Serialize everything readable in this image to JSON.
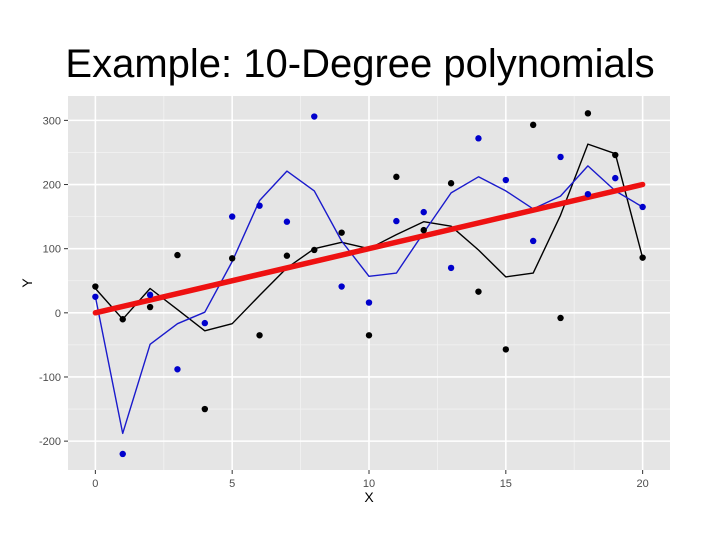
{
  "slide": {
    "title": "Example: 10-Degree polynomials"
  },
  "colors": {
    "panel_bg": "#e5e5e5",
    "grid_major": "#ffffff",
    "grid_minor": "#f2f2f2",
    "points_black": "#000000",
    "points_blue": "#0000cc",
    "fit_black": "#000000",
    "fit_blue": "#1a1acc",
    "linear_fit": "#ee1111"
  },
  "chart_data": {
    "type": "scatter",
    "title": "",
    "xlabel": "X",
    "ylabel": "Y",
    "xlim": [
      -1,
      21
    ],
    "ylim": [
      -245,
      338
    ],
    "xticks": [
      0,
      5,
      10,
      15,
      20
    ],
    "yticks": [
      -200,
      -100,
      0,
      100,
      200,
      300
    ],
    "grid": true,
    "legend": "none",
    "series": [
      {
        "kind": "points",
        "color": "points_black",
        "x": [
          0,
          1,
          2,
          3,
          4,
          5,
          6,
          7,
          8,
          9,
          10,
          11,
          12,
          13,
          14,
          15,
          16,
          17,
          18,
          19,
          20
        ],
        "y": [
          41,
          -10,
          9,
          90,
          -150,
          85,
          -35,
          89,
          98,
          125,
          -35,
          212,
          129,
          202,
          33,
          -57,
          293,
          -8,
          311,
          246,
          86
        ]
      },
      {
        "kind": "points",
        "color": "points_blue",
        "x": [
          0,
          1,
          2,
          3,
          4,
          5,
          6,
          7,
          8,
          9,
          10,
          11,
          12,
          13,
          14,
          15,
          16,
          17,
          18,
          19,
          20
        ],
        "y": [
          25,
          -220,
          28,
          -88,
          -16,
          150,
          167,
          142,
          306,
          41,
          16,
          143,
          157,
          70,
          272,
          207,
          112,
          243,
          185,
          210,
          165
        ]
      },
      {
        "kind": "curve",
        "color": "fit_black",
        "x": [
          0,
          1,
          2,
          3,
          4,
          5,
          6,
          7,
          8,
          9,
          10,
          11,
          12,
          13,
          14,
          15,
          16,
          17,
          18,
          19,
          20
        ],
        "y": [
          38,
          -10,
          38,
          5,
          -28,
          -17,
          27,
          70,
          100,
          110,
          100,
          122,
          142,
          135,
          98,
          56,
          62,
          152,
          263,
          248,
          86
        ]
      },
      {
        "kind": "curve",
        "color": "fit_blue",
        "x": [
          0,
          1,
          2,
          3,
          4,
          5,
          6,
          7,
          8,
          9,
          10,
          11,
          12,
          13,
          14,
          15,
          16,
          17,
          18,
          19,
          20
        ],
        "y": [
          25,
          -188,
          -49,
          -17,
          1,
          80,
          175,
          221,
          190,
          112,
          57,
          62,
          125,
          187,
          212,
          190,
          162,
          182,
          229,
          190,
          165
        ]
      },
      {
        "kind": "line",
        "color": "linear_fit",
        "x": [
          0,
          20
        ],
        "y": [
          0,
          200
        ]
      }
    ]
  }
}
